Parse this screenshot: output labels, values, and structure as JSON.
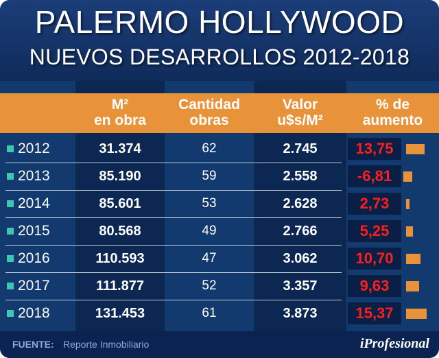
{
  "title": "PALERMO HOLLYWOOD",
  "subtitle": "NUEVOS DESARROLLOS 2012-2018",
  "colors": {
    "background": "#0f2b5a",
    "header": "#e8933a",
    "percent_text": "#ff1e1e",
    "bars": "#e8933a",
    "marker": "#3ec6b2"
  },
  "headers": {
    "m2": [
      "M²",
      "en obra"
    ],
    "cantidad": [
      "Cantidad",
      "obras"
    ],
    "valor": [
      "Valor",
      "u$s/M²"
    ],
    "pct": [
      "% de",
      "aumento"
    ]
  },
  "rows": [
    {
      "year": "2012",
      "m2": "31.374",
      "cantidad": "62",
      "valor": "2.745",
      "pct": "13,75"
    },
    {
      "year": "2013",
      "m2": "85.190",
      "cantidad": "59",
      "valor": "2.558",
      "pct": "-6,81"
    },
    {
      "year": "2014",
      "m2": "85.601",
      "cantidad": "53",
      "valor": "2.628",
      "pct": "2,73"
    },
    {
      "year": "2015",
      "m2": "80.568",
      "cantidad": "49",
      "valor": "2.766",
      "pct": "5,25"
    },
    {
      "year": "2016",
      "m2": "110.593",
      "cantidad": "47",
      "valor": "3.062",
      "pct": "10,70"
    },
    {
      "year": "2017",
      "m2": "111.877",
      "cantidad": "52",
      "valor": "3.357",
      "pct": "9,63"
    },
    {
      "year": "2018",
      "m2": "131.453",
      "cantidad": "61",
      "valor": "3.873",
      "pct": "15,37"
    }
  ],
  "chart_data": {
    "type": "table",
    "title": "PALERMO HOLLYWOOD",
    "subtitle": "NUEVOS DESARROLLOS 2012-2018",
    "columns": [
      "M² en obra",
      "Cantidad obras",
      "Valor u$s/M²",
      "% de aumento"
    ],
    "categories": [
      "2012",
      "2013",
      "2014",
      "2015",
      "2016",
      "2017",
      "2018"
    ],
    "series": [
      {
        "name": "M² en obra",
        "values": [
          31374,
          85190,
          85601,
          80568,
          110593,
          111877,
          131453
        ]
      },
      {
        "name": "Cantidad obras",
        "values": [
          62,
          59,
          53,
          49,
          47,
          52,
          61
        ]
      },
      {
        "name": "Valor u$s/M²",
        "values": [
          2745,
          2558,
          2628,
          2766,
          3062,
          3357,
          3873
        ]
      },
      {
        "name": "% de aumento",
        "values": [
          13.75,
          -6.81,
          2.73,
          5.25,
          10.7,
          9.63,
          15.37
        ]
      }
    ]
  },
  "footer": {
    "source_label": "FUENTE:",
    "source_text": "Reporte Inmobiliario",
    "brand": "iProfesional"
  }
}
